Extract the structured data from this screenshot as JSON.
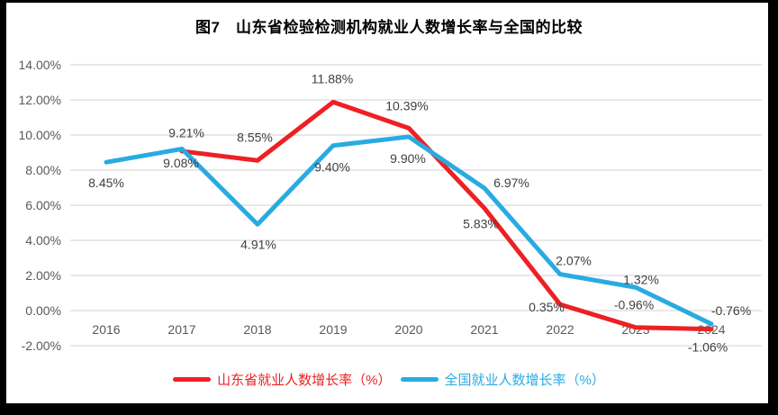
{
  "chart_data": {
    "type": "line",
    "title": "图7　山东省检验检测机构就业人数增长率与全国的比较",
    "categories": [
      "2016",
      "2017",
      "2018",
      "2019",
      "2020",
      "2021",
      "2022",
      "2023",
      "2024"
    ],
    "ylim": [
      -2,
      14
    ],
    "ytick_step": 2,
    "ytick_labels": [
      "14.00%",
      "12.00%",
      "10.00%",
      "8.00%",
      "6.00%",
      "4.00%",
      "2.00%",
      "0.00%",
      "-2.00%"
    ],
    "grid": "horizontal-only",
    "legend_position": "bottom",
    "grid_color": "#D9D9D9",
    "axis_text_color": "#595959",
    "data_label_color": "#404040",
    "series": [
      {
        "name": "山东省就业人数增长率（%）",
        "color": "#ED2024",
        "values": [
          null,
          9.08,
          8.55,
          11.88,
          10.39,
          5.83,
          0.35,
          -0.96,
          -1.06
        ],
        "point_labels": [
          null,
          "9.08%",
          "8.55%",
          "11.88%",
          "10.39%",
          "5.83%",
          "0.35%",
          "-0.96%",
          "-1.06%"
        ],
        "label_offsets": [
          null,
          [
            -1,
            13
          ],
          [
            -3,
            -26
          ],
          [
            -1,
            -26
          ],
          [
            -2,
            -25
          ],
          [
            -4,
            17
          ],
          [
            -15,
            3
          ],
          [
            -2,
            -25
          ],
          [
            -4,
            20
          ]
        ]
      },
      {
        "name": "全国就业人数增长率（%）",
        "color": "#29ABE2",
        "values": [
          8.45,
          9.21,
          4.91,
          9.4,
          9.9,
          6.97,
          2.07,
          1.32,
          -0.76
        ],
        "point_labels": [
          "8.45%",
          "9.21%",
          "4.91%",
          "9.40%",
          "9.90%",
          "6.97%",
          "2.07%",
          "1.32%",
          "-0.76%"
        ],
        "label_offsets": [
          [
            0,
            23
          ],
          [
            5,
            -18
          ],
          [
            1,
            22
          ],
          [
            -1,
            24
          ],
          [
            -1,
            24
          ],
          [
            30,
            -6
          ],
          [
            15,
            -15
          ],
          [
            6,
            -9
          ],
          [
            22,
            -15
          ]
        ]
      }
    ]
  }
}
